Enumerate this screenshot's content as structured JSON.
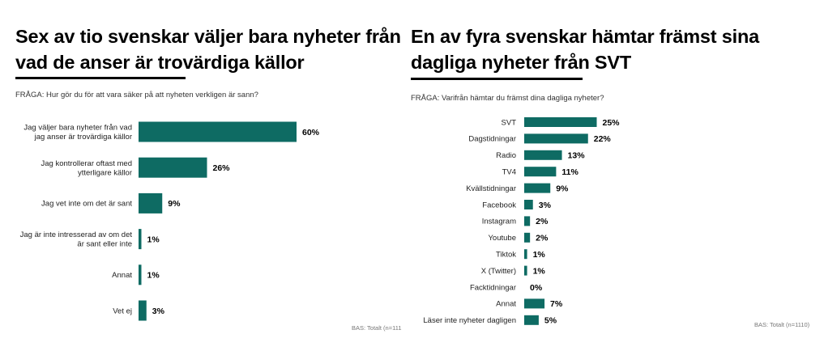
{
  "colors": {
    "bar": "#0e6b63",
    "text": "#000000"
  },
  "chart_data": [
    {
      "type": "bar",
      "orientation": "horizontal",
      "title": "Sex av tio svenskar väljer bara nyheter från vad de anser är trovärdiga källor",
      "title_lines": [
        "Sex av tio svenskar väljer bara nyheter från",
        "vad de anser är trovärdiga källor"
      ],
      "question": "FRÅGA: Hur gör du för att vara säker på att nyheten verkligen är sann?",
      "base": "BAS: Totalt (n=111",
      "unit": "%",
      "categories": [
        [
          "Jag väljer bara nyheter från vad",
          "jag anser är trovärdiga källor"
        ],
        [
          "Jag kontrollerar oftast med",
          "ytterligare källor"
        ],
        [
          "Jag vet inte om det är sant"
        ],
        [
          "Jag är inte intresserad av om det",
          "är sant eller inte"
        ],
        [
          "Annat"
        ],
        [
          "Vet ej"
        ]
      ],
      "values": [
        60,
        26,
        9,
        1,
        1,
        3
      ],
      "value_labels": [
        "60%",
        "26%",
        "9%",
        "1%",
        "1%",
        "3%"
      ]
    },
    {
      "type": "bar",
      "orientation": "horizontal",
      "title": "En av fyra svenskar hämtar främst sina dagliga nyheter från SVT",
      "title_lines": [
        "En av fyra svenskar hämtar främst sina",
        "dagliga nyheter från SVT"
      ],
      "question": "FRÅGA: Varifrån hämtar du främst dina dagliga nyheter?",
      "base": "BAS: Totalt (n=1110)",
      "unit": "%",
      "categories": [
        [
          "SVT"
        ],
        [
          "Dagstidningar"
        ],
        [
          "Radio"
        ],
        [
          "TV4"
        ],
        [
          "Kvällstidningar"
        ],
        [
          "Facebook"
        ],
        [
          "Instagram"
        ],
        [
          "Youtube"
        ],
        [
          "Tiktok"
        ],
        [
          "X (Twitter)"
        ],
        [
          "Facktidningar"
        ],
        [
          "Annat"
        ],
        [
          "Läser inte nyheter dagligen"
        ]
      ],
      "values": [
        25,
        22,
        13,
        11,
        9,
        3,
        2,
        2,
        1,
        1,
        0,
        7,
        5
      ],
      "value_labels": [
        "25%",
        "22%",
        "13%",
        "11%",
        "9%",
        "3%",
        "2%",
        "2%",
        "1%",
        "1%",
        "0%",
        "7%",
        "5%"
      ]
    }
  ]
}
